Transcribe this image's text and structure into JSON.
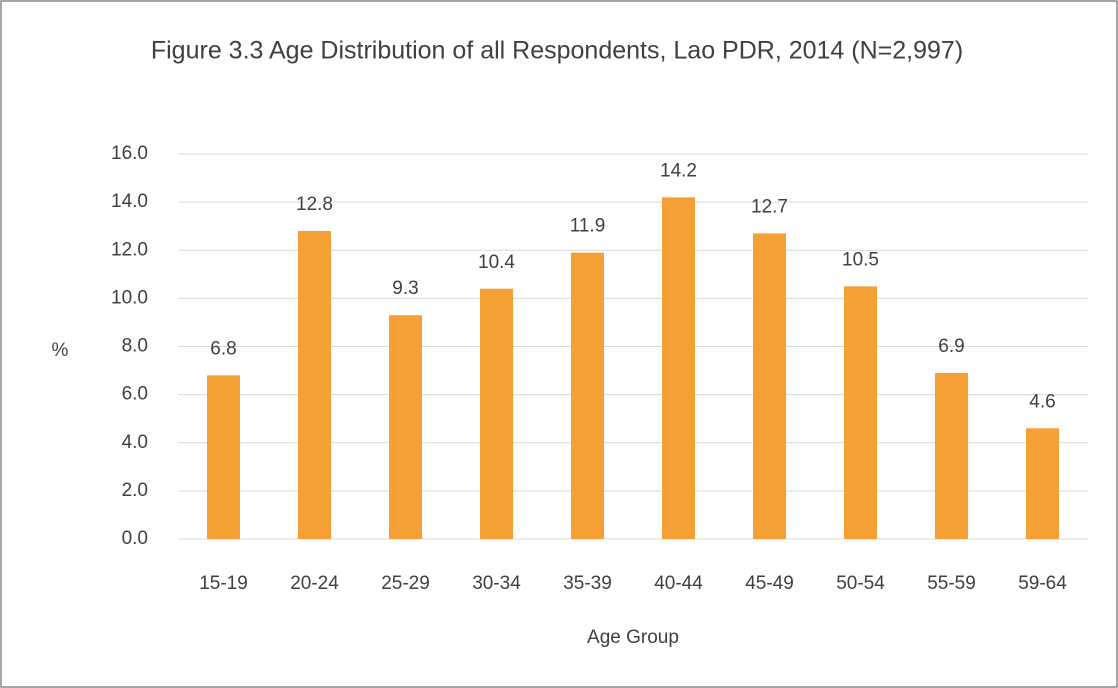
{
  "chart_data": {
    "type": "bar",
    "title": "Figure 3.3 Age Distribution of all Respondents, Lao PDR, 2014 (N=2,997)",
    "x_label": "Age Group",
    "y_label": "%",
    "categories": [
      "15-19",
      "20-24",
      "25-29",
      "30-34",
      "35-39",
      "40-44",
      "45-49",
      "50-54",
      "55-59",
      "59-64"
    ],
    "values": [
      6.8,
      12.8,
      9.3,
      10.4,
      11.9,
      14.2,
      12.7,
      10.5,
      6.9,
      4.6
    ],
    "color": "#f79f37",
    "ylim": [
      0,
      16
    ],
    "yticks": [
      {
        "value": 0,
        "label": "0.0"
      },
      {
        "value": 2,
        "label": "2.0"
      },
      {
        "value": 4,
        "label": "4.0"
      },
      {
        "value": 6,
        "label": "6.0"
      },
      {
        "value": 8,
        "label": "8.0"
      },
      {
        "value": 10,
        "label": "10.0"
      },
      {
        "value": 12,
        "label": "12.0"
      },
      {
        "value": 14,
        "label": "14.0"
      },
      {
        "value": 16,
        "label": "16.0"
      }
    ],
    "grid": true
  }
}
